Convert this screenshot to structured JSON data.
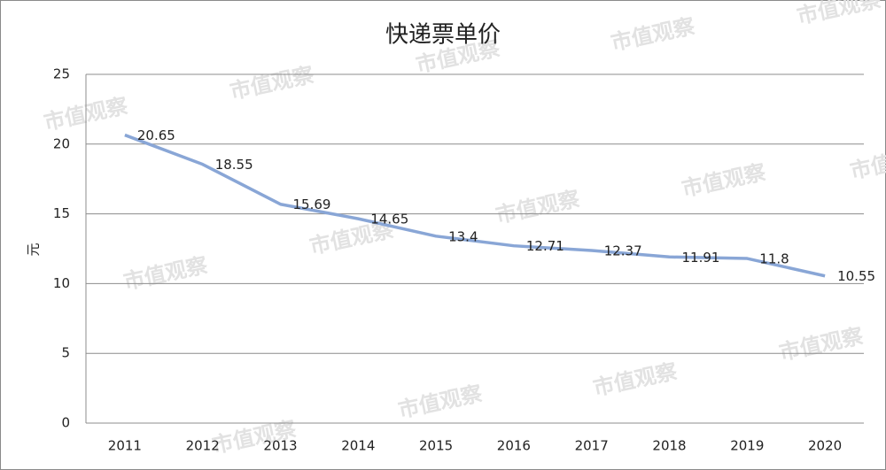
{
  "chart_data": {
    "type": "line",
    "title": "快递票单价",
    "y_label": "元",
    "categories": [
      "2011",
      "2012",
      "2013",
      "2014",
      "2015",
      "2016",
      "2017",
      "2018",
      "2019",
      "2020"
    ],
    "series": [
      {
        "name": "快递票单价",
        "color": "#89a6d6",
        "values": [
          20.65,
          18.55,
          15.69,
          14.65,
          13.4,
          12.71,
          12.37,
          11.91,
          11.8,
          10.55
        ]
      }
    ],
    "ylim": [
      0,
      25
    ],
    "yticks": [
      0,
      5,
      10,
      15,
      20,
      25
    ],
    "grid": true,
    "data_labels": true
  },
  "watermark": "市值观察"
}
